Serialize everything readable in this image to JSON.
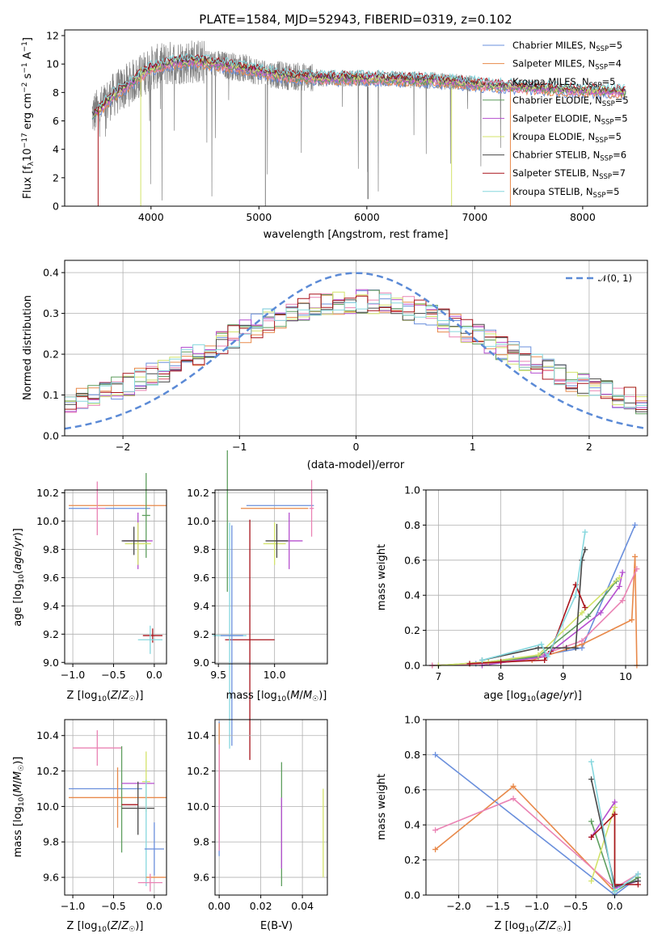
{
  "figure_title": "PLATE=1584, MJD=52943, FIBERID=0319, z=0.102",
  "colors": {
    "chabrier_miles": "#6a8fdc",
    "salpeter_miles": "#e8894a",
    "kroupa_miles": "#ea83b4",
    "chabrier_elodie": "#5e9e5e",
    "salpeter_elodie": "#b54fcf",
    "kroupa_elodie": "#d3e36a",
    "chabrier_stelib": "#484848",
    "salpeter_stelib": "#a8141c",
    "kroupa_stelib": "#86d7de",
    "data": "#808080",
    "normal": "#5b8ad6"
  },
  "chart_data": [
    {
      "id": "spectrum",
      "type": "line",
      "title": "PLATE=1584, MJD=52943, FIBERID=0319, z=0.102",
      "xlabel": "wavelength [Angstrom, rest frame]",
      "ylabel": "Flux [fλ10⁻¹⁷ erg cm⁻² s⁻¹ A⁻¹]",
      "xlim": [
        3200,
        8600
      ],
      "ylim": [
        0,
        12.4
      ],
      "xticks": [
        "4000",
        "5000",
        "6000",
        "7000",
        "8000"
      ],
      "yticks": [
        "0",
        "2",
        "4",
        "6",
        "8",
        "10",
        "12"
      ],
      "legend_position": "top-right",
      "series": [
        {
          "name": "Chabrier MILES, N_SSP=5"
        },
        {
          "name": "Salpeter MILES, N_SSP=4"
        },
        {
          "name": "Kroupa MILES, N_SSP=5"
        },
        {
          "name": "Chabrier ELODIE, N_SSP=5"
        },
        {
          "name": "Salpeter ELODIE, N_SSP=5"
        },
        {
          "name": "Kroupa ELODIE, N_SSP=5"
        },
        {
          "name": "Chabrier STELIB, N_SSP=6"
        },
        {
          "name": "Salpeter STELIB, N_SSP=7"
        },
        {
          "name": "Kroupa STELIB, N_SSP=5"
        }
      ],
      "continuum": {
        "x": [
          3450,
          3550,
          3650,
          3800,
          4000,
          4200,
          4400,
          4600,
          4800,
          5000,
          5200,
          5400,
          5600,
          5800,
          6000,
          6200,
          6400,
          6600,
          6800,
          7000,
          7200,
          7400,
          7600,
          7800,
          8000,
          8200,
          8400
        ],
        "y": [
          6.4,
          7.0,
          7.8,
          8.6,
          9.7,
          10.1,
          10.2,
          10.0,
          9.8,
          9.5,
          9.2,
          9.1,
          9.0,
          9.0,
          9.0,
          8.95,
          8.9,
          8.85,
          8.75,
          8.6,
          8.45,
          8.4,
          8.3,
          8.2,
          8.15,
          8.1,
          8.05
        ]
      }
    },
    {
      "id": "residuals",
      "type": "histogram",
      "xlabel": "(data-model)/error",
      "ylabel": "Normed distribution",
      "xlim": [
        -2.5,
        2.5
      ],
      "ylim": [
        0,
        0.43
      ],
      "xticks": [
        "−2",
        "−1",
        "0",
        "1",
        "2"
      ],
      "yticks": [
        "0.0",
        "0.1",
        "0.2",
        "0.3",
        "0.4"
      ],
      "reference": "N(0,1)",
      "legend_position": "top-right"
    },
    {
      "id": "age_vs_Z",
      "type": "scatter",
      "errorbars": true,
      "xlabel": "Z [log10(Z/Z⊙)]",
      "ylabel": "age [log10(age/yr)]",
      "xlim": [
        -1.1,
        0.15
      ],
      "ylim": [
        8.99,
        10.22
      ],
      "xticks": [
        "−1.0",
        "−0.5",
        "0.0"
      ],
      "yticks": [
        "9.0",
        "9.2",
        "9.4",
        "9.6",
        "9.8",
        "10.0",
        "10.2"
      ],
      "points": [
        {
          "x": -0.55,
          "y": 10.09,
          "xerr": 0.5,
          "yerr": 0.0
        },
        {
          "x": -0.45,
          "y": 10.11,
          "xerr": 0.6,
          "yerr": 0.0
        },
        {
          "x": -0.7,
          "y": 10.09,
          "xerr": 0.1,
          "yerr": 0.19
        },
        {
          "x": -0.1,
          "y": 10.04,
          "xerr": 0.05,
          "yerr": 0.3
        },
        {
          "x": -0.2,
          "y": 9.86,
          "xerr": 0.18,
          "yerr": 0.2
        },
        {
          "x": -0.2,
          "y": 9.84,
          "xerr": 0.16,
          "yerr": 0.15
        },
        {
          "x": -0.25,
          "y": 9.86,
          "xerr": 0.15,
          "yerr": 0.1
        },
        {
          "x": -0.02,
          "y": 9.19,
          "xerr": 0.12,
          "yerr": 0.05
        },
        {
          "x": -0.05,
          "y": 9.16,
          "xerr": 0.15,
          "yerr": 0.1
        }
      ]
    },
    {
      "id": "age_vs_mass",
      "type": "scatter",
      "errorbars": true,
      "xlabel": "mass [log10(M/M⊙)]",
      "ylabel": "",
      "xlim": [
        9.47,
        10.47
      ],
      "ylim": [
        8.99,
        10.22
      ],
      "xticks": [
        "9.5",
        "10.0"
      ],
      "yticks": [
        "9.0",
        "9.2",
        "9.4",
        "9.6",
        "9.8",
        "10.0",
        "10.2"
      ],
      "points": [
        {
          "x": 10.05,
          "y": 10.11,
          "xerr": 0.3,
          "yerr": 0.0
        },
        {
          "x": 10.0,
          "y": 10.09,
          "xerr": 0.3,
          "yerr": 0.0
        },
        {
          "x": 10.33,
          "y": 10.09,
          "xerr": 0.02,
          "yerr": 0.2
        },
        {
          "x": 9.58,
          "y": 10.0,
          "xerr": 0.0,
          "yerr": 0.5
        },
        {
          "x": 10.13,
          "y": 9.86,
          "xerr": 0.12,
          "yerr": 0.2
        },
        {
          "x": 10.0,
          "y": 9.84,
          "xerr": 0.1,
          "yerr": 0.15
        },
        {
          "x": 10.02,
          "y": 9.86,
          "xerr": 0.1,
          "yerr": 0.12
        },
        {
          "x": 9.78,
          "y": 9.16,
          "xerr": 0.22,
          "yerr": 0.85
        },
        {
          "x": 9.6,
          "y": 9.19,
          "xerr": 0.15,
          "yerr": 0.8
        },
        {
          "x": 9.62,
          "y": 9.19,
          "xerr": 0.1,
          "yerr": 0.78
        }
      ]
    },
    {
      "id": "weight_vs_age",
      "type": "line",
      "markers": "+",
      "xlabel": "age [log10(age/yr)]",
      "ylabel": "mass weight",
      "xlim": [
        6.8,
        10.35
      ],
      "ylim": [
        0,
        1.0
      ],
      "xticks": [
        "7",
        "8",
        "9",
        "10"
      ],
      "yticks": [
        "0.0",
        "0.2",
        "0.4",
        "0.6",
        "0.8",
        "1.0"
      ],
      "series": [
        {
          "x": [
            6.9,
            7.6,
            8.2,
            8.7,
            9.3,
            10.15
          ],
          "y": [
            0.0,
            0.01,
            0.04,
            0.06,
            0.1,
            0.8
          ]
        },
        {
          "x": [
            6.9,
            7.7,
            8.5,
            9.3,
            10.1,
            10.15,
            10.18
          ],
          "y": [
            0.0,
            0.01,
            0.03,
            0.12,
            0.26,
            0.62,
            0.0
          ]
        },
        {
          "x": [
            6.9,
            7.7,
            8.5,
            9.3,
            9.95,
            10.18
          ],
          "y": [
            0.0,
            0.01,
            0.04,
            0.14,
            0.37,
            0.55
          ]
        },
        {
          "x": [
            7.0,
            7.8,
            8.6,
            9.4,
            9.85
          ],
          "y": [
            0.0,
            0.02,
            0.05,
            0.28,
            0.48
          ]
        },
        {
          "x": [
            7.7,
            8.7,
            9.6,
            9.9,
            9.95
          ],
          "y": [
            0.0,
            0.05,
            0.3,
            0.45,
            0.53
          ]
        },
        {
          "x": [
            7.0,
            7.8,
            8.6,
            9.3,
            9.9
          ],
          "y": [
            0.0,
            0.02,
            0.06,
            0.3,
            0.5
          ]
        },
        {
          "x": [
            7.7,
            8.6,
            9.05,
            9.2,
            9.3,
            9.35
          ],
          "y": [
            0.03,
            0.1,
            0.1,
            0.1,
            0.6,
            0.66
          ]
        },
        {
          "x": [
            7.5,
            8.0,
            8.7,
            8.8,
            9.2,
            9.35
          ],
          "y": [
            0.01,
            0.02,
            0.03,
            0.08,
            0.46,
            0.33
          ]
        },
        {
          "x": [
            7.7,
            8.65,
            8.75,
            9.2,
            9.35
          ],
          "y": [
            0.03,
            0.12,
            0.05,
            0.4,
            0.76
          ]
        }
      ]
    },
    {
      "id": "mass_vs_Z",
      "type": "scatter",
      "errorbars": true,
      "xlabel": "Z [log10(Z/Z⊙)]",
      "ylabel": "mass [log10(M/M⊙)]",
      "xlim": [
        -1.1,
        0.15
      ],
      "ylim": [
        9.5,
        10.49
      ],
      "xticks": [
        "−1.0",
        "−0.5",
        "0.0"
      ],
      "yticks": [
        "9.6",
        "9.8",
        "10.0",
        "10.2",
        "10.4"
      ],
      "points": [
        {
          "x": -0.6,
          "y": 10.1,
          "xerr": 0.45,
          "yerr": 0.0
        },
        {
          "x": -0.45,
          "y": 10.05,
          "xerr": 0.6,
          "yerr": 0.17
        },
        {
          "x": -0.7,
          "y": 10.33,
          "xerr": 0.3,
          "yerr": 0.1
        },
        {
          "x": -0.4,
          "y": 10.04,
          "xerr": 0.0,
          "yerr": 0.3
        },
        {
          "x": -0.2,
          "y": 10.13,
          "xerr": 0.2,
          "yerr": 0.0
        },
        {
          "x": -0.1,
          "y": 10.14,
          "xerr": 0.05,
          "yerr": 0.17
        },
        {
          "x": -0.2,
          "y": 9.99,
          "xerr": 0.2,
          "yerr": 0.15
        },
        {
          "x": -0.3,
          "y": 10.01,
          "xerr": 0.1,
          "yerr": 0.0
        },
        {
          "x": -0.1,
          "y": 9.85,
          "xerr": 0.0,
          "yerr": 0.3
        },
        {
          "x": 0.0,
          "y": 9.76,
          "xerr": 0.12,
          "yerr": 0.15
        },
        {
          "x": 0.02,
          "y": 9.6,
          "xerr": 0.12,
          "yerr": 0.0
        },
        {
          "x": -0.05,
          "y": 9.57,
          "xerr": 0.15,
          "yerr": 0.05
        }
      ]
    },
    {
      "id": "mass_vs_ebv",
      "type": "scatter",
      "errorbars": true,
      "xlabel": "E(B-V)",
      "ylabel": "",
      "xlim": [
        -0.002,
        0.052
      ],
      "ylim": [
        9.5,
        10.49
      ],
      "xticks": [
        "0.00",
        "0.02",
        "0.04"
      ],
      "yticks": [
        "9.6",
        "9.8",
        "10.0",
        "10.2",
        "10.4"
      ],
      "points": [
        {
          "x": 0.0,
          "y": 10.1,
          "yerr": 0.38
        },
        {
          "x": 0.0,
          "y": 10.24,
          "yerr": 0.23
        },
        {
          "x": 0.0,
          "y": 10.05,
          "yerr": 0.3
        },
        {
          "x": 0.03,
          "y": 9.9,
          "yerr": 0.35
        },
        {
          "x": 0.03,
          "y": 9.85,
          "yerr": 0.2
        },
        {
          "x": 0.05,
          "y": 9.85,
          "yerr": 0.25
        }
      ]
    },
    {
      "id": "weight_vs_Z",
      "type": "line",
      "markers": "+",
      "xlabel": "Z [log10(Z/Z⊙)]",
      "ylabel": "mass weight",
      "xlim": [
        -2.42,
        0.42
      ],
      "ylim": [
        0,
        1.0
      ],
      "xticks": [
        "−2.0",
        "−1.5",
        "−1.0",
        "−0.5",
        "0.0"
      ],
      "yticks": [
        "0.0",
        "0.2",
        "0.4",
        "0.6",
        "0.8",
        "1.0"
      ],
      "series": [
        {
          "x": [
            -2.3,
            0.0,
            0.3
          ],
          "y": [
            0.8,
            0.0,
            0.1
          ]
        },
        {
          "x": [
            -2.3,
            -1.3,
            0.0,
            0.3
          ],
          "y": [
            0.26,
            0.62,
            0.02,
            0.1
          ]
        },
        {
          "x": [
            -2.3,
            -1.3,
            0.0,
            0.3
          ],
          "y": [
            0.37,
            0.55,
            0.04,
            0.12
          ]
        },
        {
          "x": [
            -0.3,
            0.0,
            0.3
          ],
          "y": [
            0.42,
            0.02,
            0.1
          ]
        },
        {
          "x": [
            -0.3,
            0.0,
            0.0,
            0.3
          ],
          "y": [
            0.33,
            0.53,
            0.04,
            0.08
          ]
        },
        {
          "x": [
            -0.3,
            0.0,
            0.0
          ],
          "y": [
            0.08,
            0.5,
            0.03
          ]
        },
        {
          "x": [
            -0.3,
            0.0,
            0.3
          ],
          "y": [
            0.66,
            0.05,
            0.08
          ]
        },
        {
          "x": [
            -0.3,
            0.0,
            0.0,
            0.3
          ],
          "y": [
            0.33,
            0.46,
            0.06,
            0.06
          ]
        },
        {
          "x": [
            -0.3,
            0.0,
            0.3
          ],
          "y": [
            0.76,
            0.02,
            0.12
          ]
        }
      ]
    }
  ]
}
